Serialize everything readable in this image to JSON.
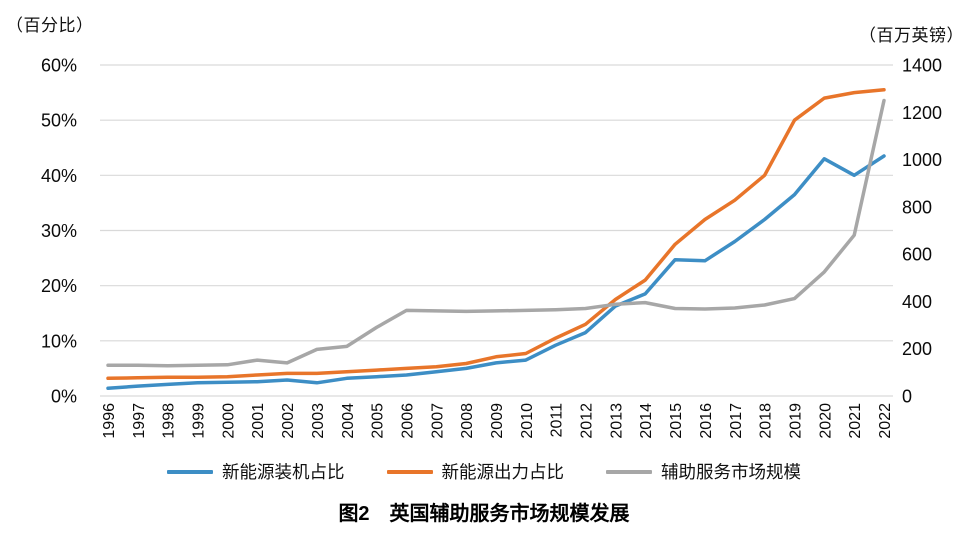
{
  "chart_data": {
    "type": "line",
    "title": "图2　英国辅助服务市场规模发展",
    "grid": true,
    "legend_position": "bottom",
    "x": [
      1996,
      1997,
      1998,
      1999,
      2000,
      2001,
      2002,
      2003,
      2004,
      2005,
      2006,
      2007,
      2008,
      2009,
      2010,
      2011,
      2012,
      2013,
      2014,
      2015,
      2016,
      2017,
      2018,
      2019,
      2020,
      2021,
      2022
    ],
    "left_axis": {
      "label": "（百分比）",
      "min": 0,
      "max": 60,
      "ticks": [
        {
          "value": 0,
          "label": "0%"
        },
        {
          "value": 10,
          "label": "10%"
        },
        {
          "value": 20,
          "label": "20%"
        },
        {
          "value": 30,
          "label": "30%"
        },
        {
          "value": 40,
          "label": "40%"
        },
        {
          "value": 50,
          "label": "50%"
        },
        {
          "value": 60,
          "label": "60%"
        }
      ]
    },
    "right_axis": {
      "label": "（百万英镑）",
      "min": 0,
      "max": 1400,
      "ticks": [
        {
          "value": 0,
          "label": "0"
        },
        {
          "value": 200,
          "label": "200"
        },
        {
          "value": 400,
          "label": "400"
        },
        {
          "value": 600,
          "label": "600"
        },
        {
          "value": 800,
          "label": "800"
        },
        {
          "value": 1000,
          "label": "1000"
        },
        {
          "value": 1200,
          "label": "1200"
        },
        {
          "value": 1400,
          "label": "1400"
        }
      ]
    },
    "series": [
      {
        "id": "installed-capacity-share",
        "name": "新能源装机占比",
        "axis": "left",
        "color": "#3d8ec5",
        "values": [
          1.4,
          1.8,
          2.1,
          2.4,
          2.5,
          2.6,
          2.9,
          2.4,
          3.2,
          3.5,
          3.8,
          4.4,
          5.0,
          6.0,
          6.5,
          9.2,
          11.5,
          16.3,
          18.5,
          24.7,
          24.5,
          28.0,
          32.0,
          36.5,
          43.0,
          40.0,
          43.5
        ]
      },
      {
        "id": "output-share",
        "name": "新能源出力占比",
        "axis": "left",
        "color": "#e8752a",
        "values": [
          3.2,
          3.3,
          3.4,
          3.4,
          3.5,
          3.8,
          4.1,
          4.1,
          4.4,
          4.7,
          5.0,
          5.3,
          5.9,
          7.1,
          7.7,
          10.5,
          13.0,
          17.5,
          21.0,
          27.5,
          32.0,
          35.5,
          40.0,
          50.0,
          54.0,
          55.0,
          55.5
        ]
      },
      {
        "id": "ancillary-market-size",
        "name": "辅助服务市场规模",
        "axis": "right",
        "color": "#a7a7a7",
        "values": [
          130,
          130,
          128,
          130,
          132,
          152,
          140,
          197,
          210,
          290,
          362,
          360,
          358,
          360,
          362,
          365,
          370,
          388,
          395,
          370,
          368,
          372,
          385,
          412,
          525,
          680,
          1250
        ]
      }
    ],
    "style": {
      "gridline_color": "#d9d9d9",
      "tick_font_px": 18,
      "year_font_px": 16,
      "line_width": 3.5
    }
  }
}
